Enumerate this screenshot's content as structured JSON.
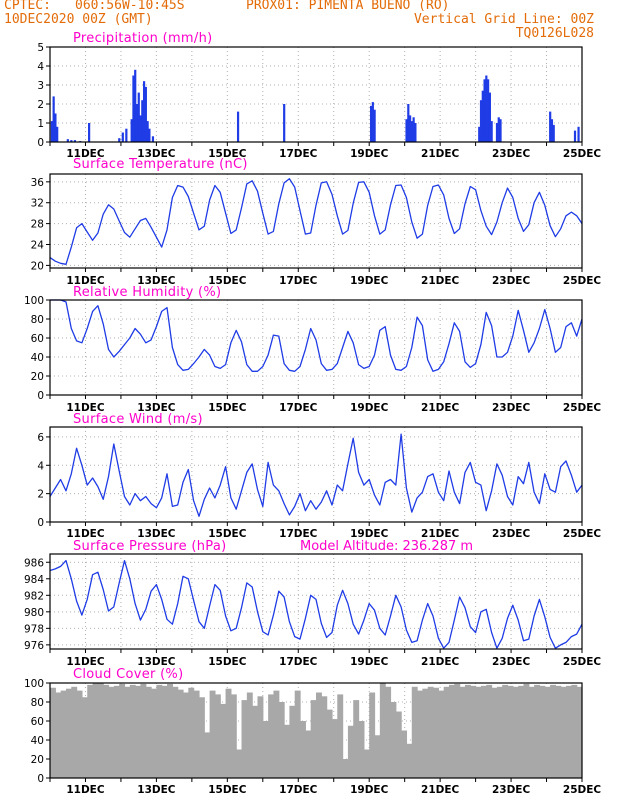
{
  "header": {
    "line1_left": "CPTEC:",
    "line1_coords": "060:56W-10:45S",
    "line1_station": "PROX01: PIMENTA BUENO (RO)",
    "line2_left": "10DEC2020 00Z (GMT)",
    "line2_right": "Vertical Grid Line: 00Z",
    "line3_right": "TQ0126L028"
  },
  "colors": {
    "header": "#e36c09",
    "title": "#ff00cc",
    "series": "#1f3ce6",
    "cloud": "#a8a8a8",
    "grid": "#b0b0b0"
  },
  "date_ticks": [
    "11DEC",
    "13DEC",
    "15DEC",
    "17DEC",
    "19DEC",
    "21DEC",
    "23DEC",
    "25DEC"
  ],
  "chart_data": [
    {
      "id": "precip",
      "type": "bar",
      "title": "Precipitation (mm/h)",
      "ylim": [
        0,
        5
      ],
      "yticks": [
        0,
        1,
        2,
        3,
        4,
        5
      ],
      "xlim_days": [
        0,
        15
      ],
      "bars": [
        {
          "x": 0.05,
          "y": 1.1
        },
        {
          "x": 0.1,
          "y": 2.4
        },
        {
          "x": 0.15,
          "y": 1.5
        },
        {
          "x": 0.2,
          "y": 0.8
        },
        {
          "x": 0.5,
          "y": 0.15
        },
        {
          "x": 0.6,
          "y": 0.1
        },
        {
          "x": 0.7,
          "y": 0.1
        },
        {
          "x": 0.85,
          "y": 0.05
        },
        {
          "x": 1.1,
          "y": 1.0
        },
        {
          "x": 1.95,
          "y": 0.2
        },
        {
          "x": 2.05,
          "y": 0.5
        },
        {
          "x": 2.15,
          "y": 0.7
        },
        {
          "x": 2.3,
          "y": 1.2
        },
        {
          "x": 2.35,
          "y": 3.5
        },
        {
          "x": 2.4,
          "y": 3.8
        },
        {
          "x": 2.45,
          "y": 2.0
        },
        {
          "x": 2.5,
          "y": 2.6
        },
        {
          "x": 2.55,
          "y": 1.4
        },
        {
          "x": 2.6,
          "y": 2.2
        },
        {
          "x": 2.65,
          "y": 3.2
        },
        {
          "x": 2.7,
          "y": 2.9
        },
        {
          "x": 2.75,
          "y": 1.1
        },
        {
          "x": 2.8,
          "y": 0.7
        },
        {
          "x": 2.9,
          "y": 0.3
        },
        {
          "x": 5.3,
          "y": 1.6
        },
        {
          "x": 6.6,
          "y": 2.0
        },
        {
          "x": 9.05,
          "y": 1.9
        },
        {
          "x": 9.1,
          "y": 2.1
        },
        {
          "x": 9.15,
          "y": 1.7
        },
        {
          "x": 10.05,
          "y": 1.2
        },
        {
          "x": 10.1,
          "y": 2.0
        },
        {
          "x": 10.15,
          "y": 1.4
        },
        {
          "x": 10.2,
          "y": 1.1
        },
        {
          "x": 10.25,
          "y": 1.3
        },
        {
          "x": 10.3,
          "y": 1.0
        },
        {
          "x": 12.1,
          "y": 0.8
        },
        {
          "x": 12.15,
          "y": 2.2
        },
        {
          "x": 12.2,
          "y": 2.7
        },
        {
          "x": 12.25,
          "y": 3.3
        },
        {
          "x": 12.3,
          "y": 3.5
        },
        {
          "x": 12.35,
          "y": 3.3
        },
        {
          "x": 12.4,
          "y": 2.6
        },
        {
          "x": 12.45,
          "y": 1.1
        },
        {
          "x": 12.6,
          "y": 1.0
        },
        {
          "x": 12.65,
          "y": 1.3
        },
        {
          "x": 12.7,
          "y": 1.2
        },
        {
          "x": 14.1,
          "y": 1.6
        },
        {
          "x": 14.15,
          "y": 1.2
        },
        {
          "x": 14.2,
          "y": 0.9
        },
        {
          "x": 14.8,
          "y": 0.6
        },
        {
          "x": 14.9,
          "y": 0.8
        }
      ]
    },
    {
      "id": "temp",
      "type": "line",
      "title": "Surface Temperature (nC)",
      "ylim": [
        19.5,
        37.5
      ],
      "yticks": [
        20,
        24,
        28,
        32,
        36
      ],
      "xlim_days": [
        0,
        15
      ],
      "x": [
        0.0,
        0.15,
        0.3,
        0.45,
        0.6,
        0.75,
        0.9,
        1.05,
        1.2,
        1.35,
        1.5,
        1.65,
        1.8,
        1.95,
        2.1,
        2.25,
        2.4,
        2.55,
        2.7,
        2.85,
        3.0,
        3.15,
        3.3,
        3.45,
        3.6,
        3.75,
        3.9,
        4.05,
        4.2,
        4.35,
        4.5,
        4.65,
        4.8,
        4.95,
        5.1,
        5.25,
        5.4,
        5.55,
        5.7,
        5.85,
        6.0,
        6.15,
        6.3,
        6.45,
        6.6,
        6.75,
        6.9,
        7.05,
        7.2,
        7.35,
        7.5,
        7.65,
        7.8,
        7.95,
        8.1,
        8.25,
        8.4,
        8.55,
        8.7,
        8.85,
        9.0,
        9.15,
        9.3,
        9.45,
        9.6,
        9.75,
        9.9,
        10.05,
        10.2,
        10.35,
        10.5,
        10.65,
        10.8,
        10.95,
        11.1,
        11.25,
        11.4,
        11.55,
        11.7,
        11.85,
        12.0,
        12.15,
        12.3,
        12.45,
        12.6,
        12.75,
        12.9,
        13.05,
        13.2,
        13.35,
        13.5,
        13.65,
        13.8,
        13.95,
        14.1,
        14.25,
        14.4,
        14.55,
        14.7,
        14.85,
        15.0
      ],
      "y": [
        21.5,
        20.8,
        20.4,
        20.2,
        23.5,
        27.2,
        28.0,
        26.4,
        24.8,
        26.2,
        29.8,
        31.6,
        30.8,
        28.5,
        26.3,
        25.4,
        27.0,
        28.6,
        29.0,
        27.3,
        25.4,
        23.5,
        26.8,
        33.0,
        35.3,
        35.0,
        33.2,
        30.0,
        26.8,
        27.5,
        32.5,
        35.3,
        34.0,
        30.0,
        26.1,
        26.8,
        31.0,
        35.6,
        36.2,
        34.2,
        30.0,
        26.0,
        26.5,
        31.8,
        35.8,
        36.6,
        35.0,
        30.5,
        26.0,
        26.2,
        31.5,
        35.8,
        36.0,
        33.6,
        29.5,
        26.0,
        26.7,
        31.9,
        35.9,
        36.0,
        34.0,
        29.5,
        26.0,
        26.8,
        31.6,
        35.3,
        35.4,
        33.0,
        28.3,
        25.2,
        26.0,
        31.5,
        35.1,
        35.4,
        33.5,
        29.0,
        26.1,
        27.0,
        31.8,
        35.1,
        34.5,
        30.5,
        27.5,
        25.9,
        28.3,
        32.0,
        34.8,
        33.0,
        29.0,
        26.5,
        27.8,
        32.0,
        34.0,
        31.5,
        27.6,
        25.5,
        27.0,
        29.5,
        30.2,
        29.5,
        28.0
      ]
    },
    {
      "id": "rh",
      "type": "line",
      "title": "Relative Humidity (%)",
      "ylim": [
        0,
        100
      ],
      "yticks": [
        0,
        20,
        40,
        60,
        80,
        100
      ],
      "xlim_days": [
        0,
        15
      ],
      "x": [
        0.0,
        0.15,
        0.3,
        0.45,
        0.6,
        0.75,
        0.9,
        1.05,
        1.2,
        1.35,
        1.5,
        1.65,
        1.8,
        1.95,
        2.1,
        2.25,
        2.4,
        2.55,
        2.7,
        2.85,
        3.0,
        3.15,
        3.3,
        3.45,
        3.6,
        3.75,
        3.9,
        4.05,
        4.2,
        4.35,
        4.5,
        4.65,
        4.8,
        4.95,
        5.1,
        5.25,
        5.4,
        5.55,
        5.7,
        5.85,
        6.0,
        6.15,
        6.3,
        6.45,
        6.6,
        6.75,
        6.9,
        7.05,
        7.2,
        7.35,
        7.5,
        7.65,
        7.8,
        7.95,
        8.1,
        8.25,
        8.4,
        8.55,
        8.7,
        8.85,
        9.0,
        9.15,
        9.3,
        9.45,
        9.6,
        9.75,
        9.9,
        10.05,
        10.2,
        10.35,
        10.5,
        10.65,
        10.8,
        10.95,
        11.1,
        11.25,
        11.4,
        11.55,
        11.7,
        11.85,
        12.0,
        12.15,
        12.3,
        12.45,
        12.6,
        12.75,
        12.9,
        13.05,
        13.2,
        13.35,
        13.5,
        13.65,
        13.8,
        13.95,
        14.1,
        14.25,
        14.4,
        14.55,
        14.7,
        14.85,
        15.0
      ],
      "y": [
        100,
        100,
        100,
        98,
        70,
        57,
        55,
        70,
        88,
        94,
        75,
        48,
        40,
        46,
        53,
        60,
        70,
        64,
        55,
        58,
        72,
        88,
        92,
        50,
        32,
        26,
        27,
        33,
        40,
        48,
        42,
        30,
        28,
        32,
        55,
        68,
        56,
        32,
        25,
        25,
        30,
        42,
        63,
        62,
        33,
        26,
        25,
        30,
        48,
        70,
        58,
        33,
        26,
        27,
        33,
        50,
        67,
        55,
        32,
        28,
        30,
        42,
        68,
        72,
        42,
        27,
        26,
        30,
        50,
        82,
        73,
        37,
        25,
        27,
        35,
        54,
        76,
        67,
        35,
        29,
        33,
        53,
        87,
        73,
        40,
        40,
        45,
        62,
        89,
        68,
        45,
        55,
        70,
        90,
        70,
        45,
        50,
        72,
        76,
        62,
        80
      ]
    },
    {
      "id": "wind",
      "type": "line",
      "title": "Surface Wind (m/s)",
      "ylim": [
        0,
        6.7
      ],
      "yticks": [
        0,
        2,
        4,
        6
      ],
      "xlim_days": [
        0,
        15
      ],
      "x": [
        0.0,
        0.15,
        0.3,
        0.45,
        0.6,
        0.75,
        0.9,
        1.05,
        1.2,
        1.35,
        1.5,
        1.65,
        1.8,
        1.95,
        2.1,
        2.25,
        2.4,
        2.55,
        2.7,
        2.85,
        3.0,
        3.15,
        3.3,
        3.45,
        3.6,
        3.75,
        3.9,
        4.05,
        4.2,
        4.35,
        4.5,
        4.65,
        4.8,
        4.95,
        5.1,
        5.25,
        5.4,
        5.55,
        5.7,
        5.85,
        6.0,
        6.15,
        6.3,
        6.45,
        6.6,
        6.75,
        6.9,
        7.05,
        7.2,
        7.35,
        7.5,
        7.65,
        7.8,
        7.95,
        8.1,
        8.25,
        8.4,
        8.55,
        8.7,
        8.85,
        9.0,
        9.15,
        9.3,
        9.45,
        9.6,
        9.75,
        9.9,
        10.05,
        10.2,
        10.35,
        10.5,
        10.65,
        10.8,
        10.95,
        11.1,
        11.25,
        11.4,
        11.55,
        11.7,
        11.85,
        12.0,
        12.15,
        12.3,
        12.45,
        12.6,
        12.75,
        12.9,
        13.05,
        13.2,
        13.35,
        13.5,
        13.65,
        13.8,
        13.95,
        14.1,
        14.25,
        14.4,
        14.55,
        14.7,
        14.85,
        15.0
      ],
      "y": [
        1.8,
        2.4,
        3.0,
        2.2,
        3.4,
        5.2,
        4.0,
        2.6,
        3.1,
        2.5,
        1.6,
        3.2,
        5.5,
        3.6,
        1.8,
        1.2,
        2.0,
        1.5,
        1.8,
        1.3,
        1.0,
        1.7,
        3.4,
        1.1,
        1.2,
        2.8,
        3.7,
        1.5,
        0.4,
        1.6,
        2.4,
        1.7,
        2.6,
        3.9,
        1.7,
        0.9,
        2.2,
        3.5,
        4.1,
        2.3,
        1.1,
        4.2,
        2.6,
        2.2,
        1.3,
        0.5,
        1.1,
        2.0,
        0.8,
        1.5,
        0.9,
        1.4,
        2.2,
        1.2,
        2.6,
        2.2,
        4.1,
        5.9,
        3.5,
        2.6,
        3.0,
        1.9,
        1.2,
        2.8,
        3.0,
        2.6,
        6.2,
        2.4,
        0.7,
        1.7,
        2.1,
        3.2,
        3.4,
        2.1,
        1.5,
        3.6,
        2.1,
        1.3,
        3.5,
        4.2,
        2.8,
        2.6,
        0.8,
        2.2,
        4.1,
        3.3,
        1.8,
        1.2,
        3.2,
        2.7,
        4.2,
        2.1,
        1.3,
        3.4,
        2.3,
        2.1,
        3.9,
        4.3,
        3.3,
        2.1,
        2.6
      ]
    },
    {
      "id": "pressure",
      "type": "line",
      "title": "Surface Pressure (hPa)",
      "annotation": "Model Altitude: 236.287  m",
      "ylim": [
        975.5,
        987
      ],
      "yticks": [
        976,
        978,
        980,
        982,
        984,
        986
      ],
      "xlim_days": [
        0,
        15
      ],
      "x": [
        0.0,
        0.15,
        0.3,
        0.45,
        0.6,
        0.75,
        0.9,
        1.05,
        1.2,
        1.35,
        1.5,
        1.65,
        1.8,
        1.95,
        2.1,
        2.25,
        2.4,
        2.55,
        2.7,
        2.85,
        3.0,
        3.15,
        3.3,
        3.45,
        3.6,
        3.75,
        3.9,
        4.05,
        4.2,
        4.35,
        4.5,
        4.65,
        4.8,
        4.95,
        5.1,
        5.25,
        5.4,
        5.55,
        5.7,
        5.85,
        6.0,
        6.15,
        6.3,
        6.45,
        6.6,
        6.75,
        6.9,
        7.05,
        7.2,
        7.35,
        7.5,
        7.65,
        7.8,
        7.95,
        8.1,
        8.25,
        8.4,
        8.55,
        8.7,
        8.85,
        9.0,
        9.15,
        9.3,
        9.45,
        9.6,
        9.75,
        9.9,
        10.05,
        10.2,
        10.35,
        10.5,
        10.65,
        10.8,
        10.95,
        11.1,
        11.25,
        11.4,
        11.55,
        11.7,
        11.85,
        12.0,
        12.15,
        12.3,
        12.45,
        12.6,
        12.75,
        12.9,
        13.05,
        13.2,
        13.35,
        13.5,
        13.65,
        13.8,
        13.95,
        14.1,
        14.25,
        14.4,
        14.55,
        14.7,
        14.85,
        15.0
      ],
      "y": [
        985.0,
        985.2,
        985.5,
        986.2,
        984.0,
        981.3,
        979.6,
        981.5,
        984.5,
        984.8,
        982.7,
        980.1,
        980.6,
        983.5,
        986.2,
        984.0,
        981.0,
        979.0,
        980.3,
        982.5,
        983.3,
        981.5,
        979.1,
        978.5,
        981.0,
        984.3,
        984.0,
        981.4,
        978.8,
        978.0,
        980.7,
        983.3,
        982.6,
        979.5,
        977.7,
        978.0,
        980.5,
        983.5,
        983.0,
        980.0,
        977.6,
        977.2,
        979.6,
        982.5,
        981.8,
        978.8,
        977.0,
        976.7,
        979.2,
        982.0,
        981.5,
        978.6,
        976.9,
        977.5,
        980.8,
        982.6,
        981.0,
        978.5,
        977.3,
        979.0,
        981.0,
        980.2,
        978.0,
        977.2,
        979.5,
        982.0,
        980.6,
        977.8,
        976.3,
        976.5,
        979.0,
        981.0,
        979.5,
        976.8,
        975.6,
        976.3,
        979.0,
        981.8,
        980.5,
        978.2,
        977.5,
        980.0,
        980.3,
        977.5,
        975.6,
        976.8,
        979.2,
        980.8,
        979.0,
        976.5,
        976.7,
        979.5,
        981.5,
        979.4,
        976.9,
        975.6,
        976.0,
        976.3,
        977.0,
        977.3,
        978.5
      ]
    },
    {
      "id": "cloud",
      "type": "area",
      "title": "Cloud Cover (%)",
      "ylim": [
        0,
        100
      ],
      "yticks": [
        0,
        20,
        40,
        60,
        80,
        100
      ],
      "xlim_days": [
        0,
        15
      ],
      "x": [
        0.0,
        0.15,
        0.3,
        0.45,
        0.6,
        0.75,
        0.9,
        1.05,
        1.2,
        1.35,
        1.5,
        1.65,
        1.8,
        1.95,
        2.1,
        2.25,
        2.4,
        2.55,
        2.7,
        2.85,
        3.0,
        3.15,
        3.3,
        3.45,
        3.6,
        3.75,
        3.9,
        4.05,
        4.2,
        4.35,
        4.5,
        4.65,
        4.8,
        4.95,
        5.1,
        5.25,
        5.4,
        5.55,
        5.7,
        5.85,
        6.0,
        6.15,
        6.3,
        6.45,
        6.6,
        6.75,
        6.9,
        7.05,
        7.2,
        7.35,
        7.5,
        7.65,
        7.8,
        7.95,
        8.1,
        8.25,
        8.4,
        8.55,
        8.7,
        8.85,
        9.0,
        9.15,
        9.3,
        9.45,
        9.6,
        9.75,
        9.9,
        10.05,
        10.2,
        10.35,
        10.5,
        10.65,
        10.8,
        10.95,
        11.1,
        11.25,
        11.4,
        11.55,
        11.7,
        11.85,
        12.0,
        12.15,
        12.3,
        12.45,
        12.6,
        12.75,
        12.9,
        13.05,
        13.2,
        13.35,
        13.5,
        13.65,
        13.8,
        13.95,
        14.1,
        14.25,
        14.4,
        14.55,
        14.7,
        14.85,
        15.0
      ],
      "y": [
        95,
        90,
        92,
        94,
        96,
        92,
        85,
        98,
        100,
        100,
        98,
        96,
        97,
        99,
        96,
        98,
        97,
        99,
        96,
        94,
        98,
        97,
        99,
        96,
        93,
        90,
        95,
        92,
        85,
        48,
        92,
        88,
        78,
        94,
        88,
        30,
        82,
        90,
        76,
        86,
        60,
        88,
        92,
        80,
        56,
        76,
        92,
        60,
        50,
        82,
        90,
        86,
        72,
        62,
        88,
        20,
        55,
        82,
        60,
        30,
        90,
        45,
        100,
        96,
        80,
        70,
        50,
        36,
        96,
        92,
        94,
        96,
        95,
        92,
        96,
        98,
        99,
        96,
        98,
        97,
        96,
        97,
        98,
        95,
        96,
        98,
        97,
        96,
        97,
        99,
        96,
        98,
        97,
        96,
        98,
        97,
        96,
        97,
        98,
        96,
        97
      ]
    }
  ]
}
